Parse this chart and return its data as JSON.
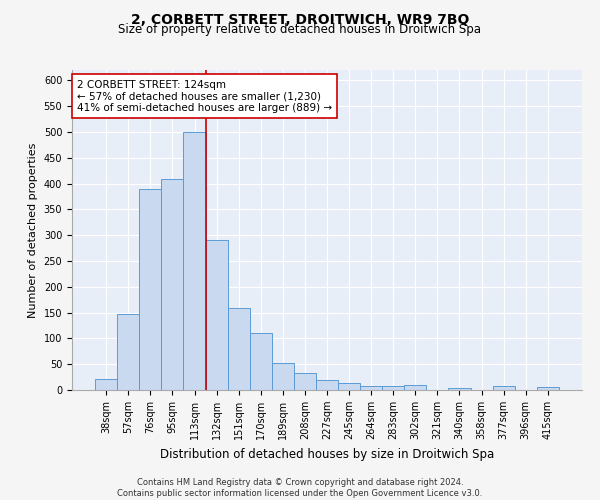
{
  "title": "2, CORBETT STREET, DROITWICH, WR9 7BQ",
  "subtitle": "Size of property relative to detached houses in Droitwich Spa",
  "xlabel": "Distribution of detached houses by size in Droitwich Spa",
  "ylabel": "Number of detached properties",
  "categories": [
    "38sqm",
    "57sqm",
    "76sqm",
    "95sqm",
    "113sqm",
    "132sqm",
    "151sqm",
    "170sqm",
    "189sqm",
    "208sqm",
    "227sqm",
    "245sqm",
    "264sqm",
    "283sqm",
    "302sqm",
    "321sqm",
    "340sqm",
    "358sqm",
    "377sqm",
    "396sqm",
    "415sqm"
  ],
  "values": [
    22,
    148,
    390,
    408,
    500,
    291,
    158,
    110,
    53,
    32,
    20,
    14,
    8,
    7,
    10,
    0,
    4,
    0,
    7,
    0,
    5
  ],
  "bar_color": "#c9d9f0",
  "bar_edge_color": "#5b9bd5",
  "vline_x_index": 4.5,
  "vline_color": "#cc0000",
  "annotation_text": "2 CORBETT STREET: 124sqm\n← 57% of detached houses are smaller (1,230)\n41% of semi-detached houses are larger (889) →",
  "annotation_box_color": "#ffffff",
  "annotation_box_edge": "#cc0000",
  "ylim": [
    0,
    620
  ],
  "yticks": [
    0,
    50,
    100,
    150,
    200,
    250,
    300,
    350,
    400,
    450,
    500,
    550,
    600
  ],
  "footnote": "Contains HM Land Registry data © Crown copyright and database right 2024.\nContains public sector information licensed under the Open Government Licence v3.0.",
  "fig_facecolor": "#f5f5f5",
  "background_color": "#e8eef8",
  "grid_color": "#ffffff",
  "title_fontsize": 10,
  "subtitle_fontsize": 8.5,
  "xlabel_fontsize": 8.5,
  "ylabel_fontsize": 8,
  "tick_fontsize": 7,
  "annotation_fontsize": 7.5,
  "footnote_fontsize": 6
}
